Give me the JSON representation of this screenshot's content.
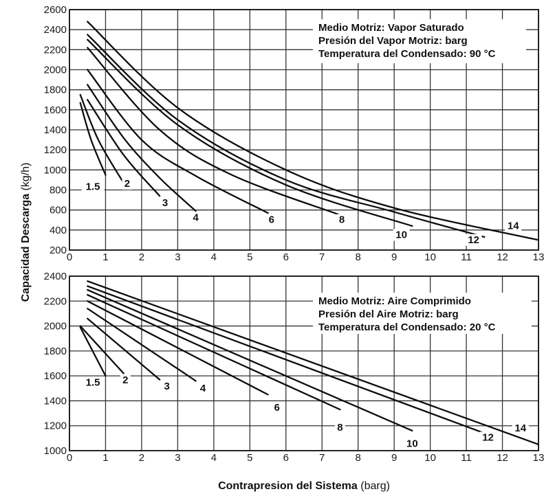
{
  "ylabel_bold": "Capacidad Descarga",
  "ylabel_unit": " (kg/h)",
  "xlabel_bold": "Contrapresion del Sistema",
  "xlabel_unit": " (barg)",
  "chart_data": [
    {
      "type": "line",
      "xlim": [
        0,
        13
      ],
      "ylim": [
        200,
        2600
      ],
      "xticks": [
        0,
        1,
        2,
        3,
        4,
        5,
        6,
        7,
        8,
        9,
        10,
        11,
        12,
        13
      ],
      "yticks": [
        200,
        400,
        600,
        800,
        1000,
        1200,
        1400,
        1600,
        1800,
        2000,
        2200,
        2400,
        2600
      ],
      "grid": true,
      "legend_lines": [
        "Medio Motriz: Vapor Saturado",
        "Presión del Vapor Motriz: barg",
        "Temperatura del Condensado: 90 °C"
      ],
      "legend_position": "top-right",
      "series": [
        {
          "name": "1.5",
          "x": [
            0.3,
            0.6,
            1.0
          ],
          "y": [
            1670,
            1300,
            950
          ]
        },
        {
          "name": "2",
          "x": [
            0.3,
            0.8,
            1.5
          ],
          "y": [
            1750,
            1300,
            870
          ]
        },
        {
          "name": "3",
          "x": [
            0.5,
            1.5,
            2.5
          ],
          "y": [
            1700,
            1150,
            740
          ]
        },
        {
          "name": "4",
          "x": [
            0.5,
            1.5,
            2.5,
            3.5
          ],
          "y": [
            1850,
            1320,
            920,
            590
          ]
        },
        {
          "name": "6",
          "x": [
            0.5,
            2,
            3.5,
            5.5
          ],
          "y": [
            2000,
            1300,
            940,
            570
          ]
        },
        {
          "name": "8",
          "x": [
            0.5,
            2.5,
            4.5,
            7.5
          ],
          "y": [
            2220,
            1400,
            950,
            550
          ]
        },
        {
          "name": "10",
          "x": [
            0.5,
            3,
            6,
            9.5
          ],
          "y": [
            2300,
            1450,
            850,
            440
          ]
        },
        {
          "name": "12",
          "x": [
            0.5,
            3,
            6,
            9,
            11.5
          ],
          "y": [
            2350,
            1500,
            900,
            580,
            330
          ]
        },
        {
          "name": "14",
          "x": [
            0.5,
            3,
            6,
            9,
            13
          ],
          "y": [
            2480,
            1620,
            1000,
            620,
            300
          ]
        }
      ],
      "curve_labels": [
        {
          "text": "1.5",
          "x": 0.65,
          "y": 800
        },
        {
          "text": "2",
          "x": 1.6,
          "y": 830
        },
        {
          "text": "3",
          "x": 2.65,
          "y": 640
        },
        {
          "text": "4",
          "x": 3.5,
          "y": 490
        },
        {
          "text": "6",
          "x": 5.6,
          "y": 470
        },
        {
          "text": "8",
          "x": 7.55,
          "y": 470
        },
        {
          "text": "10",
          "x": 9.2,
          "y": 320
        },
        {
          "text": "12",
          "x": 11.2,
          "y": 270
        },
        {
          "text": "14",
          "x": 12.3,
          "y": 410
        }
      ]
    },
    {
      "type": "line",
      "xlim": [
        0,
        13
      ],
      "ylim": [
        1000,
        2400
      ],
      "xticks": [
        0,
        1,
        2,
        3,
        4,
        5,
        6,
        7,
        8,
        9,
        10,
        11,
        12,
        13
      ],
      "yticks": [
        1000,
        1200,
        1400,
        1600,
        1800,
        2000,
        2200,
        2400
      ],
      "grid": true,
      "legend_lines": [
        "Medio Motriz: Aire Comprimido",
        "Presión del Aire Motriz: barg",
        "Temperatura del Condensado: 20 °C"
      ],
      "legend_position": "top-right",
      "series": [
        {
          "name": "1.5",
          "x": [
            0.3,
            1.0
          ],
          "y": [
            1990,
            1600
          ]
        },
        {
          "name": "2",
          "x": [
            0.3,
            1.5
          ],
          "y": [
            2000,
            1620
          ]
        },
        {
          "name": "3",
          "x": [
            0.5,
            2.5
          ],
          "y": [
            2060,
            1570
          ]
        },
        {
          "name": "4",
          "x": [
            0.5,
            3.5
          ],
          "y": [
            2140,
            1560
          ]
        },
        {
          "name": "6",
          "x": [
            0.5,
            5.5
          ],
          "y": [
            2200,
            1450
          ]
        },
        {
          "name": "8",
          "x": [
            0.5,
            7.5
          ],
          "y": [
            2250,
            1330
          ]
        },
        {
          "name": "10",
          "x": [
            0.5,
            9.5
          ],
          "y": [
            2290,
            1160
          ]
        },
        {
          "name": "12",
          "x": [
            0.5,
            11.5
          ],
          "y": [
            2320,
            1140
          ]
        },
        {
          "name": "14",
          "x": [
            0.5,
            13
          ],
          "y": [
            2360,
            1050
          ]
        }
      ],
      "curve_labels": [
        {
          "text": "1.5",
          "x": 0.65,
          "y": 1520
        },
        {
          "text": "2",
          "x": 1.55,
          "y": 1540
        },
        {
          "text": "3",
          "x": 2.7,
          "y": 1490
        },
        {
          "text": "4",
          "x": 3.7,
          "y": 1475
        },
        {
          "text": "6",
          "x": 5.75,
          "y": 1320
        },
        {
          "text": "8",
          "x": 7.5,
          "y": 1160
        },
        {
          "text": "10",
          "x": 9.5,
          "y": 1030
        },
        {
          "text": "12",
          "x": 11.6,
          "y": 1080
        },
        {
          "text": "14",
          "x": 12.5,
          "y": 1155
        }
      ]
    }
  ]
}
